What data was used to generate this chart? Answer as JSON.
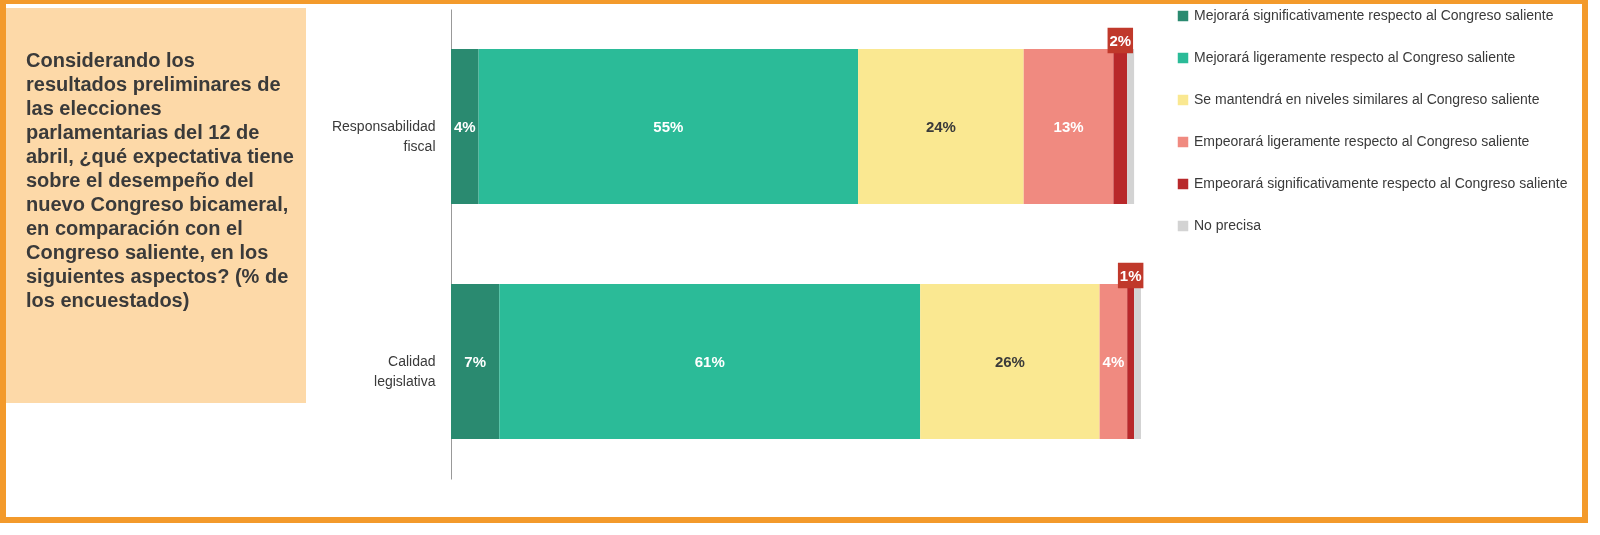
{
  "chart_data": {
    "type": "bar",
    "orientation": "horizontal",
    "stacked": true,
    "title": "Considerando los resultados preliminares de las elecciones parlamentarias del 12 de abril, ¿qué expectativa tiene sobre el desempeño del nuevo Congreso bicameral, en comparación con el Congreso saliente, en los siguientes aspectos? (% de los encuestados)",
    "categories": [
      "Responsabilidad fiscal",
      "Calidad legislativa"
    ],
    "legend": "right",
    "series": [
      {
        "name": "Mejorará significativamente respecto al Congreso saliente",
        "color": "#2a8a70",
        "values": [
          4,
          7
        ],
        "value_labels": [
          "4%",
          "7%"
        ]
      },
      {
        "name": "Mejorará ligeramente respecto al Congreso saliente",
        "color": "#2bbb98",
        "values": [
          55,
          61
        ],
        "value_labels": [
          "55%",
          "61%"
        ]
      },
      {
        "name": "Se mantendrá en niveles similares al Congreso saliente",
        "color": "#fae891",
        "values": [
          24,
          26
        ],
        "value_labels": [
          "24%",
          "26%"
        ]
      },
      {
        "name": "Empeorará ligeramente respecto al Congreso saliente",
        "color": "#f08a80",
        "values": [
          13,
          4
        ],
        "value_labels": [
          "13%",
          "4%"
        ]
      },
      {
        "name": "Empeorará significativamente respecto al Congreso saliente",
        "color": "#b8282a",
        "values": [
          2,
          1
        ],
        "value_labels": [
          "2%",
          "1%"
        ]
      },
      {
        "name": "No precisa",
        "color": "#d3d3d3",
        "values": [
          1,
          1
        ],
        "value_labels": [
          null,
          null
        ]
      }
    ]
  }
}
